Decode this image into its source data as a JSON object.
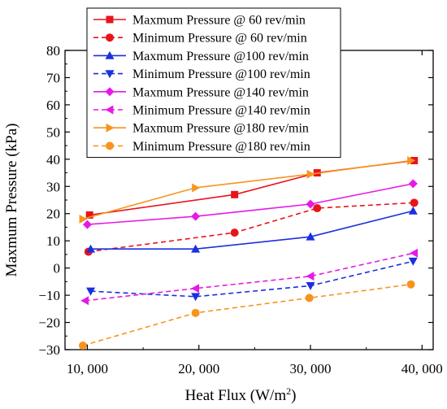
{
  "chart_data": {
    "type": "line",
    "xlabel": "Heat Flux (W/m",
    "xlabel_sup": "2",
    "xlabel_close": ")",
    "ylabel": "Maxmum Pressure (kPa)",
    "xlim": [
      8000,
      41000
    ],
    "ylim": [
      -30,
      80
    ],
    "x_ticks": [
      {
        "value": 10000,
        "label": "10, 000"
      },
      {
        "value": 20000,
        "label": "20, 000"
      },
      {
        "value": 30000,
        "label": "30, 000"
      },
      {
        "value": 40000,
        "label": "40, 000"
      }
    ],
    "y_ticks": [
      -30,
      -20,
      -10,
      0,
      10,
      20,
      30,
      40,
      50,
      60,
      70,
      80
    ],
    "y_tick_labels": [
      "−30",
      "−20",
      "−10",
      "0",
      "10",
      "20",
      "30",
      "40",
      "50",
      "60",
      "70",
      "80"
    ],
    "grid": false,
    "legend_position": "top-left",
    "series": [
      {
        "name": "Maxmum Pressure @ 60 rev/min",
        "color": "#e8141b",
        "dashed": false,
        "marker": "square",
        "x": [
          10200,
          23200,
          30600,
          39300
        ],
        "y": [
          19.5,
          27,
          35,
          39.5
        ]
      },
      {
        "name": "Minimum Pressure @ 60 rev/min",
        "color": "#e8141b",
        "dashed": true,
        "marker": "circle",
        "x": [
          10100,
          23200,
          30600,
          39300
        ],
        "y": [
          6,
          13,
          22,
          24
        ]
      },
      {
        "name": "Maxmum Pressure @100 rev/min",
        "color": "#1a2fe0",
        "dashed": false,
        "marker": "triangle-up",
        "x": [
          10300,
          19700,
          30000,
          39200
        ],
        "y": [
          7,
          7,
          11.5,
          21
        ]
      },
      {
        "name": "Minimum Pressure @100 rev/min",
        "color": "#1a2fe0",
        "dashed": true,
        "marker": "triangle-down",
        "x": [
          10300,
          19700,
          30000,
          39200
        ],
        "y": [
          -8.5,
          -10.5,
          -6.5,
          2.5
        ]
      },
      {
        "name": "Maxmum Pressure @140 rev/min",
        "color": "#e619e6",
        "dashed": false,
        "marker": "diamond",
        "x": [
          10000,
          19700,
          30000,
          39200
        ],
        "y": [
          16,
          19,
          23.5,
          31
        ]
      },
      {
        "name": "Minimum Pressure @140 rev/min",
        "color": "#e619e6",
        "dashed": true,
        "marker": "triangle-left",
        "x": [
          9800,
          19700,
          30000,
          39300
        ],
        "y": [
          -12,
          -7.5,
          -3,
          5.5
        ]
      },
      {
        "name": "Maxmum Pressure @180 rev/min",
        "color": "#f7941d",
        "dashed": false,
        "marker": "triangle-right",
        "x": [
          9600,
          19700,
          30000,
          39000
        ],
        "y": [
          18,
          29.5,
          34.5,
          39.5
        ]
      },
      {
        "name": "Minimum Pressure @180 rev/min",
        "color": "#f7941d",
        "dashed": true,
        "marker": "circle",
        "x": [
          9600,
          19700,
          29900,
          39000
        ],
        "y": [
          -28.5,
          -16.5,
          -11,
          -6
        ]
      }
    ]
  }
}
